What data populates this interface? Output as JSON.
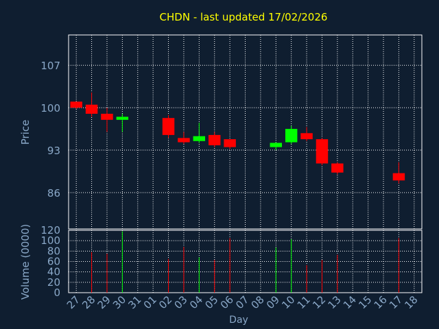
{
  "chart_data": {
    "type": "candlestick",
    "title": "CHDN - last updated 17/02/2026",
    "colors": {
      "background": "#0f1e30",
      "title": "#ffff00",
      "axis_text": "#8aa8c8",
      "grid": "#ffffff",
      "up": "#00ff00",
      "down": "#ff0000"
    },
    "price_panel": {
      "ylabel": "Price",
      "ylim": [
        80,
        112
      ],
      "yticks": [
        86,
        93,
        100,
        107
      ],
      "ytick_labels": [
        "86",
        "93",
        "100",
        "107"
      ]
    },
    "volume_panel": {
      "ylabel": "Volume (0000)",
      "ylim": [
        0,
        120
      ],
      "yticks": [
        0,
        20,
        40,
        60,
        80,
        100,
        120
      ],
      "ytick_labels": [
        "0",
        "20",
        "40",
        "60",
        "80",
        "100",
        "120"
      ]
    },
    "xlabel": "Day",
    "x_tick_labels": [
      "27",
      "28",
      "29",
      "30",
      "31",
      "01",
      "02",
      "03",
      "04",
      "05",
      "06",
      "07",
      "08",
      "09",
      "10",
      "11",
      "12",
      "13",
      "14",
      "15",
      "16",
      "17",
      "18"
    ],
    "candles": [
      {
        "i": 0,
        "open": 101.0,
        "high": 101.0,
        "low": 99.8,
        "close": 100.0,
        "volume": 0
      },
      {
        "i": 1,
        "open": 100.5,
        "high": 102.5,
        "low": 98.5,
        "close": 99.0,
        "volume": 78
      },
      {
        "i": 2,
        "open": 99.0,
        "high": 100.0,
        "low": 96.0,
        "close": 98.0,
        "volume": 75
      },
      {
        "i": 3,
        "open": 98.0,
        "high": 99.0,
        "low": 96.0,
        "close": 98.5,
        "volume": 118
      },
      {
        "i": 6,
        "open": 98.3,
        "high": 98.8,
        "low": 95.0,
        "close": 95.5,
        "volume": 65
      },
      {
        "i": 7,
        "open": 95.0,
        "high": 96.0,
        "low": 94.0,
        "close": 94.3,
        "volume": 88
      },
      {
        "i": 8,
        "open": 94.5,
        "high": 97.5,
        "low": 94.2,
        "close": 95.3,
        "volume": 68
      },
      {
        "i": 9,
        "open": 95.5,
        "high": 96.0,
        "low": 93.5,
        "close": 93.8,
        "volume": 63
      },
      {
        "i": 10,
        "open": 94.8,
        "high": 94.8,
        "low": 93.2,
        "close": 93.5,
        "volume": 105
      },
      {
        "i": 13,
        "open": 93.5,
        "high": 94.3,
        "low": 93.0,
        "close": 94.2,
        "volume": 87
      },
      {
        "i": 14,
        "open": 94.3,
        "high": 97.0,
        "low": 94.0,
        "close": 96.5,
        "volume": 103
      },
      {
        "i": 15,
        "open": 95.8,
        "high": 96.8,
        "low": 94.5,
        "close": 94.8,
        "volume": 53
      },
      {
        "i": 16,
        "open": 94.8,
        "high": 95.0,
        "low": 90.5,
        "close": 90.8,
        "volume": 63
      },
      {
        "i": 17,
        "open": 90.8,
        "high": 91.0,
        "low": 89.0,
        "close": 89.3,
        "volume": 73
      },
      {
        "i": 21,
        "open": 89.2,
        "high": 91.0,
        "low": 87.5,
        "close": 88.0,
        "volume": 105
      }
    ]
  }
}
